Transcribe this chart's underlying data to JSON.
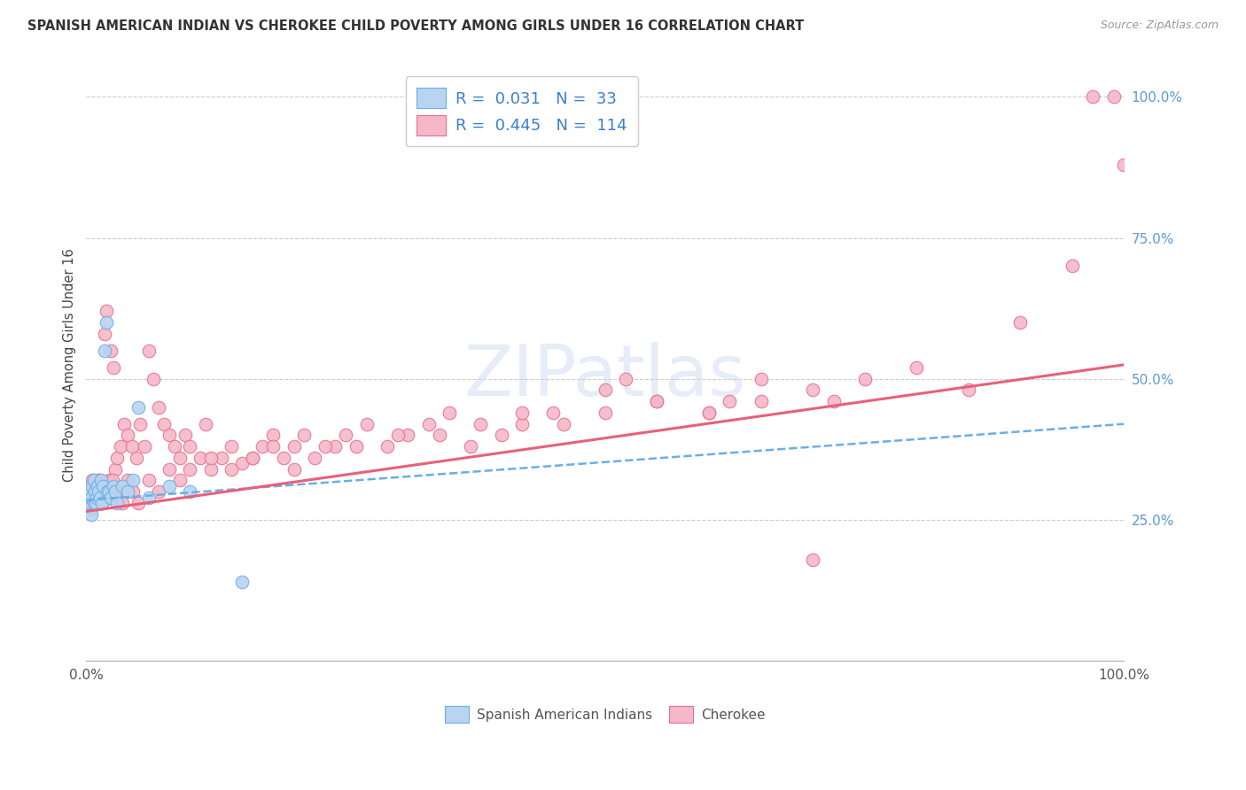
{
  "title": "SPANISH AMERICAN INDIAN VS CHEROKEE CHILD POVERTY AMONG GIRLS UNDER 16 CORRELATION CHART",
  "source": "Source: ZipAtlas.com",
  "ylabel": "Child Poverty Among Girls Under 16",
  "watermark": "ZIPatlas",
  "sai_color": "#b8d4f0",
  "sai_edge": "#6aaee8",
  "cherokee_color": "#f4b8c8",
  "cherokee_edge": "#e87090",
  "trendline_sai_color": "#6aaee8",
  "trendline_cherokee_color": "#e8607a",
  "grid_color": "#cccccc",
  "background_color": "#ffffff",
  "right_tick_color": "#5b9bd5",
  "xlim": [
    0.0,
    1.0
  ],
  "ylim": [
    0.0,
    1.05
  ],
  "sai_R": 0.031,
  "sai_N": 33,
  "cherokee_R": 0.445,
  "cherokee_N": 114,
  "sai_x": [
    0.002,
    0.003,
    0.004,
    0.005,
    0.005,
    0.006,
    0.007,
    0.007,
    0.008,
    0.009,
    0.01,
    0.011,
    0.012,
    0.013,
    0.014,
    0.015,
    0.016,
    0.018,
    0.019,
    0.02,
    0.022,
    0.024,
    0.026,
    0.028,
    0.03,
    0.035,
    0.04,
    0.045,
    0.05,
    0.06,
    0.08,
    0.1,
    0.15
  ],
  "sai_y": [
    0.27,
    0.3,
    0.28,
    0.26,
    0.29,
    0.31,
    0.28,
    0.32,
    0.3,
    0.28,
    0.29,
    0.31,
    0.3,
    0.29,
    0.32,
    0.28,
    0.31,
    0.55,
    0.6,
    0.3,
    0.3,
    0.29,
    0.31,
    0.3,
    0.28,
    0.31,
    0.3,
    0.32,
    0.45,
    0.29,
    0.31,
    0.3,
    0.14
  ],
  "cherokee_x": [
    0.002,
    0.003,
    0.004,
    0.005,
    0.006,
    0.007,
    0.008,
    0.009,
    0.01,
    0.011,
    0.012,
    0.013,
    0.014,
    0.015,
    0.016,
    0.017,
    0.018,
    0.019,
    0.02,
    0.022,
    0.024,
    0.026,
    0.028,
    0.03,
    0.033,
    0.036,
    0.04,
    0.044,
    0.048,
    0.052,
    0.056,
    0.06,
    0.065,
    0.07,
    0.075,
    0.08,
    0.085,
    0.09,
    0.095,
    0.1,
    0.11,
    0.115,
    0.12,
    0.13,
    0.14,
    0.15,
    0.16,
    0.17,
    0.18,
    0.19,
    0.2,
    0.21,
    0.22,
    0.24,
    0.25,
    0.27,
    0.29,
    0.31,
    0.33,
    0.35,
    0.37,
    0.4,
    0.42,
    0.45,
    0.5,
    0.52,
    0.55,
    0.6,
    0.62,
    0.65,
    0.7,
    0.72,
    0.75,
    0.8,
    0.85,
    0.9,
    0.95,
    0.97,
    0.99,
    1.0,
    0.008,
    0.01,
    0.012,
    0.015,
    0.018,
    0.022,
    0.025,
    0.03,
    0.035,
    0.04,
    0.045,
    0.05,
    0.06,
    0.07,
    0.08,
    0.09,
    0.1,
    0.12,
    0.14,
    0.16,
    0.18,
    0.2,
    0.23,
    0.26,
    0.3,
    0.34,
    0.38,
    0.42,
    0.46,
    0.5,
    0.55,
    0.6,
    0.65,
    0.7
  ],
  "cherokee_y": [
    0.28,
    0.3,
    0.29,
    0.27,
    0.32,
    0.3,
    0.28,
    0.31,
    0.29,
    0.3,
    0.32,
    0.3,
    0.28,
    0.29,
    0.31,
    0.3,
    0.58,
    0.62,
    0.3,
    0.32,
    0.55,
    0.52,
    0.34,
    0.36,
    0.38,
    0.42,
    0.4,
    0.38,
    0.36,
    0.42,
    0.38,
    0.55,
    0.5,
    0.45,
    0.42,
    0.4,
    0.38,
    0.36,
    0.4,
    0.38,
    0.36,
    0.42,
    0.34,
    0.36,
    0.38,
    0.35,
    0.36,
    0.38,
    0.4,
    0.36,
    0.38,
    0.4,
    0.36,
    0.38,
    0.4,
    0.42,
    0.38,
    0.4,
    0.42,
    0.44,
    0.38,
    0.4,
    0.42,
    0.44,
    0.48,
    0.5,
    0.46,
    0.44,
    0.46,
    0.5,
    0.48,
    0.46,
    0.5,
    0.52,
    0.48,
    0.6,
    0.7,
    1.0,
    1.0,
    0.88,
    0.28,
    0.3,
    0.32,
    0.28,
    0.3,
    0.29,
    0.32,
    0.3,
    0.28,
    0.32,
    0.3,
    0.28,
    0.32,
    0.3,
    0.34,
    0.32,
    0.34,
    0.36,
    0.34,
    0.36,
    0.38,
    0.34,
    0.38,
    0.38,
    0.4,
    0.4,
    0.42,
    0.44,
    0.42,
    0.44,
    0.46,
    0.44,
    0.46,
    0.18
  ]
}
